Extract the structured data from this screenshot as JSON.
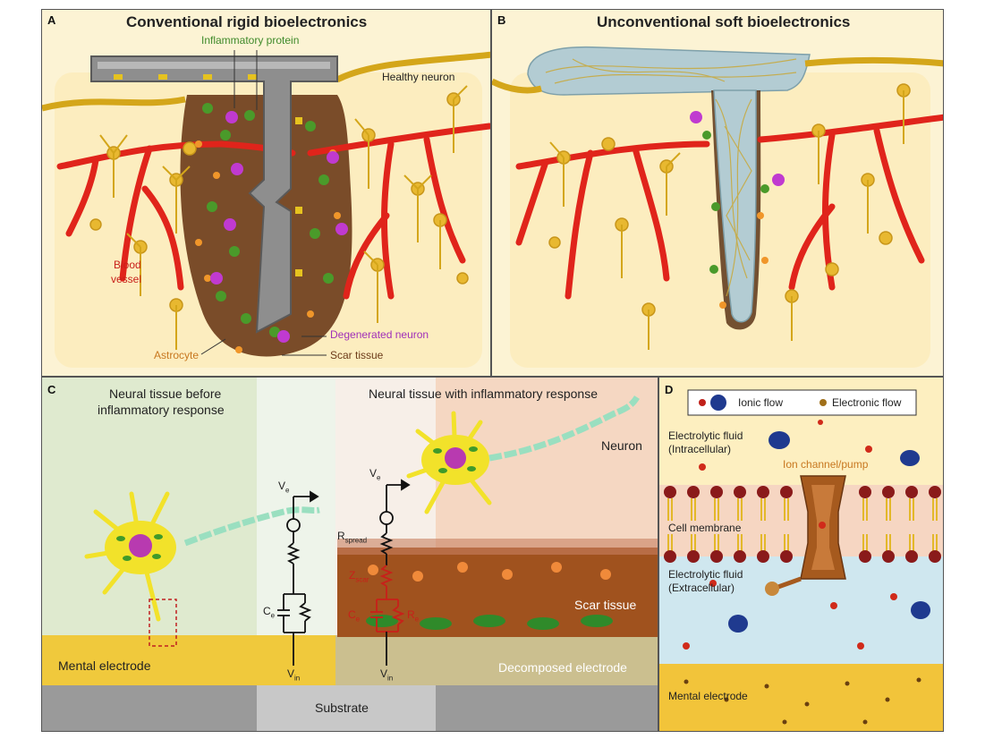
{
  "panel_a": {
    "letter": "A",
    "title": "Conventional rigid bioelectronics",
    "labels": {
      "inflammatory_protein": "Inflammatory protein",
      "healthy_neuron": "Healthy neuron",
      "blood": "Blood",
      "vessel": "vessel",
      "degenerated_neuron": "Degenerated neuron",
      "astrocyte": "Astrocyte",
      "scar_tissue": "Scar tissue"
    }
  },
  "panel_b": {
    "letter": "B",
    "title": "Unconventional soft bioelectronics"
  },
  "panel_c": {
    "letter": "C",
    "before_line1": "Neural tissue before",
    "before_line2": "inflammatory response",
    "after": "Neural tissue with inflammatory response",
    "neuron": "Neuron",
    "scar_tissue": "Scar tissue",
    "mental_electrode": "Mental electrode",
    "decomposed_electrode": "Decomposed electrode",
    "substrate": "Substrate",
    "circuit_left": {
      "ve": "V",
      "ve_sub": "e",
      "ce": "C",
      "ce_sub": "e",
      "vin": "V",
      "vin_sub": "in"
    },
    "circuit_right": {
      "ve": "V",
      "ve_sub": "e",
      "rspread": "R",
      "rspread_sub": "spread",
      "zscar": "Z",
      "zscar_sub": "scar",
      "ce": "C",
      "ce_sub": "e",
      "re": "R",
      "re_sub": "e",
      "vin": "V",
      "vin_sub": "in"
    }
  },
  "panel_d": {
    "letter": "D",
    "legend_ionic": "Ionic flow",
    "legend_electronic": "Electronic flow",
    "fluid_intra_line1": "Electrolytic fluid",
    "fluid_intra_line2": "(Intracellular)",
    "ion_channel": "Ion channel/pump",
    "cell_membrane": "Cell membrane",
    "fluid_extra_line1": "Electrolytic fluid",
    "fluid_extra_line2": "(Extracellular)",
    "mental_electrode": "Mental electrode"
  },
  "colors": {
    "tissue": "#fbefc4",
    "vessel": "#e0241b",
    "neuron": "#e8b830",
    "astrocyte": "#f0962a",
    "inflammatory": "#4a9a2a",
    "degenerated": "#c03ad0",
    "scar": "#6b3a18",
    "electrode": "#8a8a8a",
    "label_red": "#c8201a",
    "label_green": "#3f8a2a",
    "label_purple": "#a030b8",
    "label_orange": "#c87820"
  }
}
